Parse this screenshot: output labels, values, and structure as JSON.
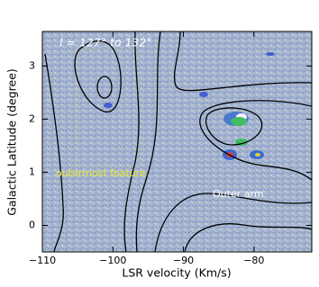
{
  "chart_data": {
    "type": "image",
    "title": "l = 127° to 132°",
    "x_label": "LSR velocity (Km/s)",
    "y_label": "Galactic Latitude (degree)",
    "annotations": [
      "outermost feature",
      "Outer arm"
    ],
    "xlim": [
      -110,
      -71.8
    ],
    "ylim": [
      -0.5,
      3.65
    ],
    "xticks": [
      {
        "value": -110,
        "label": "−110"
      },
      {
        "value": -100,
        "label": "−100"
      },
      {
        "value": -90,
        "label": "−90"
      },
      {
        "value": -80,
        "label": "−80"
      }
    ],
    "yticks": [
      0,
      1,
      2,
      3
    ]
  }
}
